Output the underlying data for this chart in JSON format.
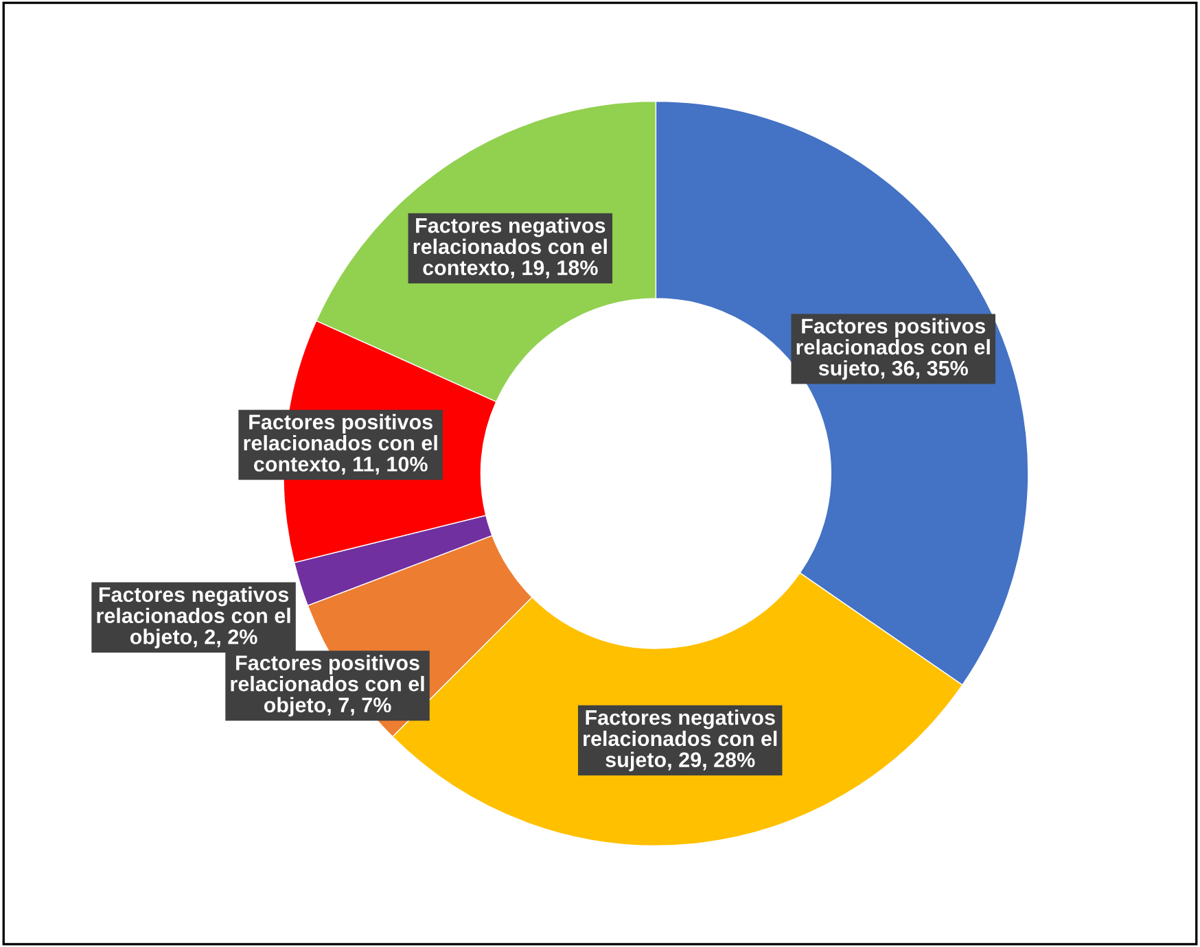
{
  "chart_data": {
    "type": "donut",
    "categories": [
      "Factores positivos\nrelacionados con el\nsujeto",
      "Factores negativos\nrelacionados con el\nsujeto",
      "Factores positivos\nrelacionados con el\nobjeto",
      "Factores negativos\nrelacionados con el\nobjeto",
      "Factores positivos\nrelacionados con el\ncontexto",
      "Factores negativos\nrelacionados con el\ncontexto"
    ],
    "values": [
      36,
      29,
      7,
      2,
      11,
      19
    ],
    "value_labels": [
      "36, 35%",
      "29, 28%",
      "7, 7%",
      "2, 2%",
      "11, 10%",
      "19, 18%"
    ],
    "colors": [
      "#4472c4",
      "#ffc000",
      "#ed7d31",
      "#7030a0",
      "#ff0000",
      "#92d050"
    ],
    "legend": false
  }
}
